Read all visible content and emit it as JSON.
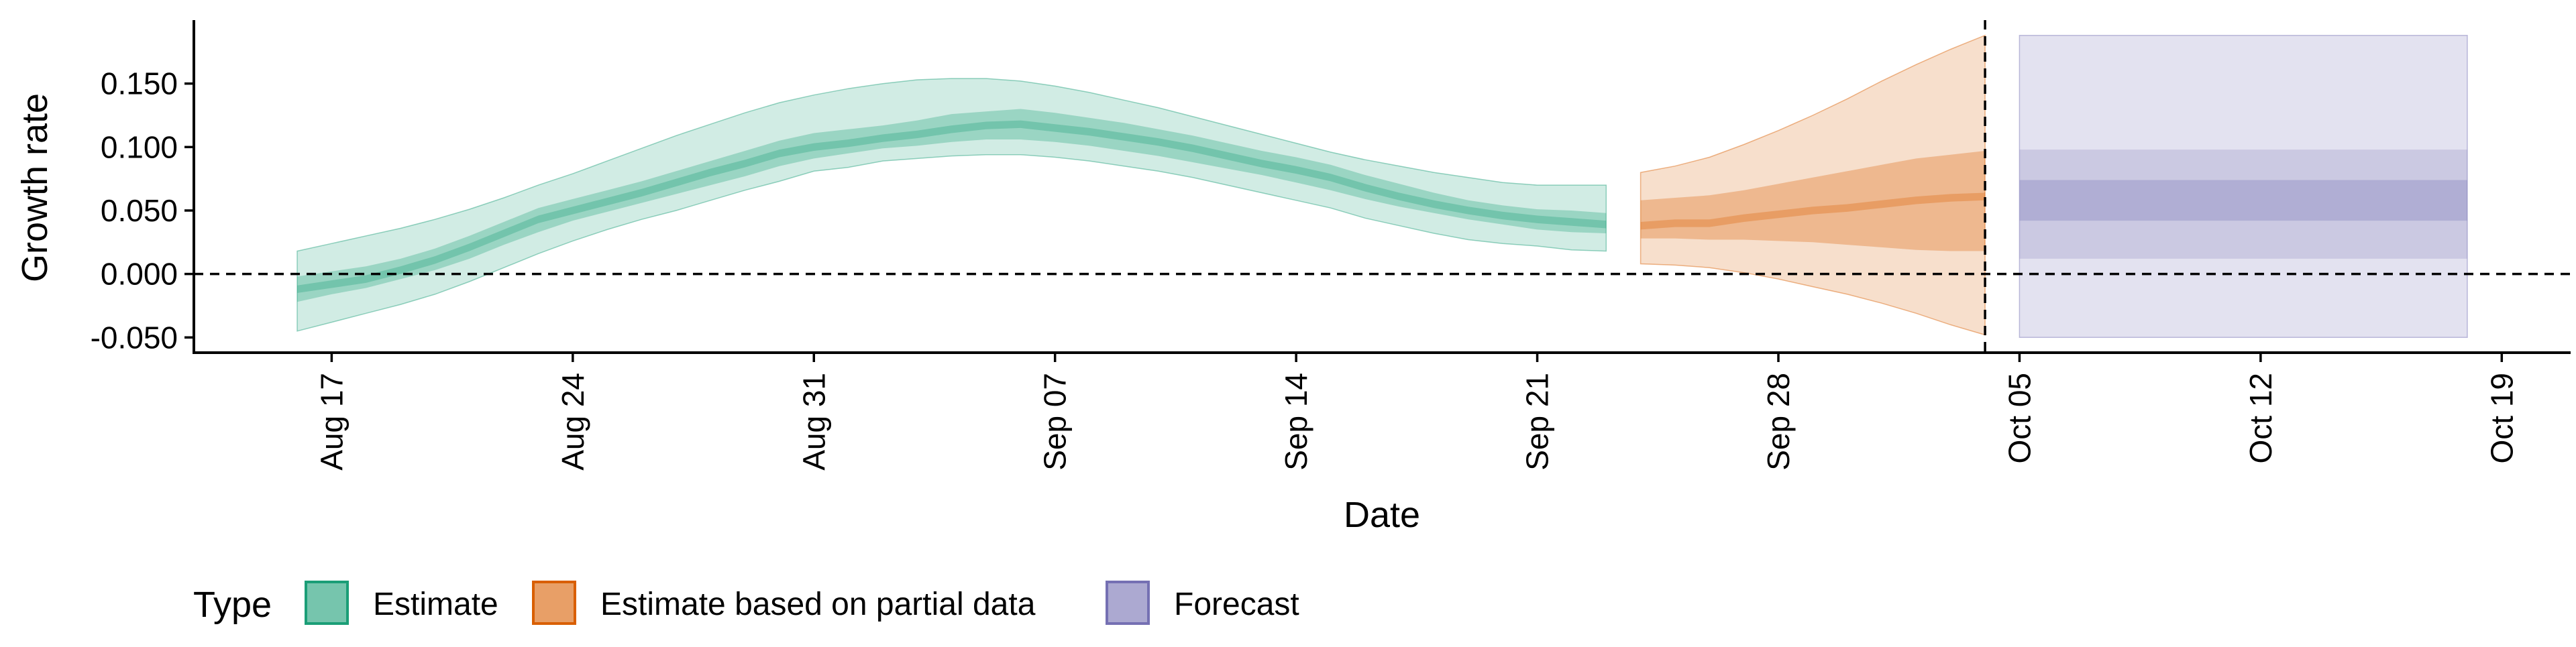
{
  "chart_data": {
    "type": "area",
    "xlabel": "Date",
    "ylabel": "Growth rate",
    "xlim": [
      "2020-08-13",
      "2020-10-21"
    ],
    "ylim": [
      -0.062,
      0.2
    ],
    "x_ticks": [
      {
        "date": "2020-08-17",
        "label": "Aug 17"
      },
      {
        "date": "2020-08-24",
        "label": "Aug 24"
      },
      {
        "date": "2020-08-31",
        "label": "Aug 31"
      },
      {
        "date": "2020-09-07",
        "label": "Sep 07"
      },
      {
        "date": "2020-09-14",
        "label": "Sep 14"
      },
      {
        "date": "2020-09-21",
        "label": "Sep 21"
      },
      {
        "date": "2020-09-28",
        "label": "Sep 28"
      },
      {
        "date": "2020-10-05",
        "label": "Oct 05"
      },
      {
        "date": "2020-10-12",
        "label": "Oct 12"
      },
      {
        "date": "2020-10-19",
        "label": "Oct 19"
      }
    ],
    "y_ticks": [
      {
        "value": -0.05,
        "label": "-0.050"
      },
      {
        "value": 0.0,
        "label": "0.000"
      },
      {
        "value": 0.05,
        "label": "0.050"
      },
      {
        "value": 0.1,
        "label": "0.100"
      },
      {
        "value": 0.15,
        "label": "0.150"
      }
    ],
    "reference_lines": {
      "horizontal_y": 0.0,
      "vertical_date": "2020-10-04"
    },
    "grid": false,
    "legend": {
      "title": "Type",
      "position": "bottom",
      "entries": [
        {
          "label": "Estimate",
          "color": "#1b9e77"
        },
        {
          "label": "Estimate based on partial data",
          "color": "#d95f02"
        },
        {
          "label": "Forecast",
          "color": "#7570b3"
        }
      ]
    },
    "series": [
      {
        "type_index": 0,
        "color": "#1b9e77",
        "x": [
          "2020-08-16",
          "2020-08-17",
          "2020-08-18",
          "2020-08-19",
          "2020-08-20",
          "2020-08-21",
          "2020-08-22",
          "2020-08-23",
          "2020-08-24",
          "2020-08-25",
          "2020-08-26",
          "2020-08-27",
          "2020-08-28",
          "2020-08-29",
          "2020-08-30",
          "2020-08-31",
          "2020-09-01",
          "2020-09-02",
          "2020-09-03",
          "2020-09-04",
          "2020-09-05",
          "2020-09-06",
          "2020-09-07",
          "2020-09-08",
          "2020-09-09",
          "2020-09-10",
          "2020-09-11",
          "2020-09-12",
          "2020-09-13",
          "2020-09-14",
          "2020-09-15",
          "2020-09-16",
          "2020-09-17",
          "2020-09-18",
          "2020-09-19",
          "2020-09-20",
          "2020-09-21",
          "2020-09-22",
          "2020-09-23"
        ],
        "median": [
          -0.012,
          -0.008,
          -0.004,
          0.003,
          0.011,
          0.021,
          0.032,
          0.043,
          0.05,
          0.057,
          0.064,
          0.072,
          0.08,
          0.087,
          0.095,
          0.1,
          0.103,
          0.107,
          0.11,
          0.114,
          0.117,
          0.118,
          0.115,
          0.112,
          0.108,
          0.104,
          0.099,
          0.093,
          0.087,
          0.082,
          0.076,
          0.068,
          0.061,
          0.055,
          0.05,
          0.046,
          0.043,
          0.041,
          0.039
        ],
        "inner_low": [
          -0.022,
          -0.016,
          -0.011,
          -0.004,
          0.003,
          0.012,
          0.023,
          0.033,
          0.042,
          0.049,
          0.056,
          0.063,
          0.07,
          0.077,
          0.085,
          0.091,
          0.095,
          0.099,
          0.101,
          0.104,
          0.106,
          0.106,
          0.104,
          0.101,
          0.097,
          0.093,
          0.088,
          0.083,
          0.078,
          0.072,
          0.066,
          0.059,
          0.053,
          0.048,
          0.043,
          0.039,
          0.035,
          0.033,
          0.032
        ],
        "inner_high": [
          -0.002,
          0.002,
          0.006,
          0.012,
          0.02,
          0.03,
          0.041,
          0.052,
          0.059,
          0.066,
          0.073,
          0.081,
          0.089,
          0.097,
          0.105,
          0.111,
          0.114,
          0.117,
          0.121,
          0.126,
          0.128,
          0.13,
          0.127,
          0.123,
          0.119,
          0.114,
          0.109,
          0.103,
          0.097,
          0.092,
          0.086,
          0.078,
          0.071,
          0.064,
          0.058,
          0.054,
          0.051,
          0.05,
          0.048
        ],
        "outer_low": [
          -0.045,
          -0.038,
          -0.031,
          -0.024,
          -0.016,
          -0.006,
          0.005,
          0.016,
          0.026,
          0.035,
          0.043,
          0.05,
          0.058,
          0.066,
          0.073,
          0.081,
          0.084,
          0.089,
          0.091,
          0.093,
          0.094,
          0.094,
          0.092,
          0.089,
          0.085,
          0.081,
          0.076,
          0.07,
          0.064,
          0.058,
          0.052,
          0.044,
          0.038,
          0.032,
          0.027,
          0.024,
          0.022,
          0.019,
          0.018
        ],
        "outer_high": [
          0.018,
          0.024,
          0.03,
          0.036,
          0.043,
          0.051,
          0.06,
          0.07,
          0.079,
          0.089,
          0.099,
          0.109,
          0.118,
          0.127,
          0.135,
          0.141,
          0.146,
          0.15,
          0.153,
          0.154,
          0.154,
          0.152,
          0.148,
          0.143,
          0.137,
          0.131,
          0.124,
          0.117,
          0.11,
          0.103,
          0.096,
          0.09,
          0.085,
          0.08,
          0.076,
          0.072,
          0.07,
          0.07,
          0.07
        ]
      },
      {
        "type_index": 1,
        "color": "#d95f02",
        "x": [
          "2020-09-24",
          "2020-09-25",
          "2020-09-26",
          "2020-09-27",
          "2020-09-28",
          "2020-09-29",
          "2020-09-30",
          "2020-10-01",
          "2020-10-02",
          "2020-10-03",
          "2020-10-04"
        ],
        "median": [
          0.038,
          0.04,
          0.04,
          0.044,
          0.047,
          0.05,
          0.052,
          0.055,
          0.058,
          0.06,
          0.061
        ],
        "inner_low": [
          0.028,
          0.028,
          0.027,
          0.027,
          0.026,
          0.025,
          0.023,
          0.021,
          0.019,
          0.018,
          0.018
        ],
        "inner_high": [
          0.058,
          0.06,
          0.062,
          0.066,
          0.071,
          0.076,
          0.081,
          0.086,
          0.091,
          0.094,
          0.097
        ],
        "outer_low": [
          0.008,
          0.007,
          0.005,
          0.001,
          -0.004,
          -0.01,
          -0.016,
          -0.023,
          -0.031,
          -0.04,
          -0.048
        ],
        "outer_high": [
          0.08,
          0.085,
          0.092,
          0.102,
          0.113,
          0.125,
          0.138,
          0.152,
          0.165,
          0.177,
          0.188
        ]
      },
      {
        "type_index": 2,
        "color": "#7570b3",
        "x": [
          "2020-10-05",
          "2020-10-18"
        ],
        "median": [
          0.058,
          0.058
        ],
        "inner_low": [
          0.042,
          0.042
        ],
        "inner_high": [
          0.074,
          0.074
        ],
        "mid_low": [
          0.012,
          0.012
        ],
        "mid_high": [
          0.098,
          0.098
        ],
        "outer_low": [
          -0.05,
          -0.05
        ],
        "outer_high": [
          0.188,
          0.188
        ]
      }
    ]
  }
}
